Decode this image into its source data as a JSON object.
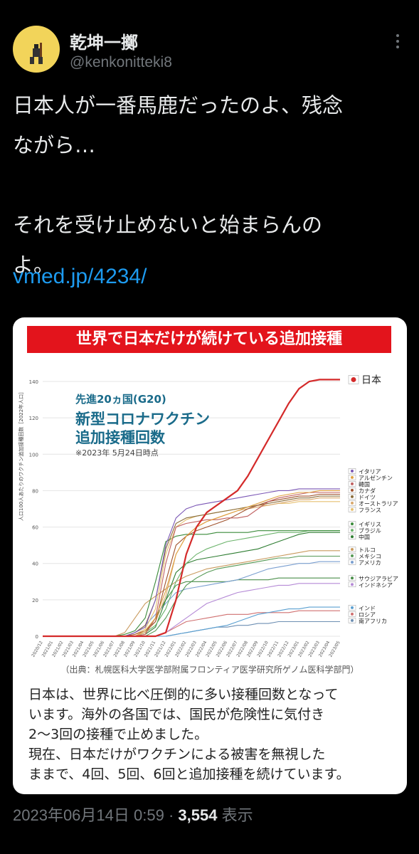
{
  "author": {
    "name": "乾坤一擲",
    "handle": "@kenkonitteki8"
  },
  "tweet": {
    "text": "日本人が一番馬鹿だったのよ、残念\nながら…\n\nそれを受け止めないと始まらんの\nよ。",
    "link": "vmed.jp/4234/"
  },
  "image": {
    "banner": "世界で日本だけが続けている追加接種",
    "chart_title_1": "先進20ヵ国(G20)",
    "chart_title_2": "新型コロナワクチン",
    "chart_title_3": "追加接種回数",
    "chart_date": "※2023年 5月24日時点",
    "ylabel": "人口100人あたりのワクチン追加接種回数［2022年人口］",
    "source": "（出典：札幌医科大学医学部附属フロンティア医学研究所ゲノム医科学部門）",
    "caption": "日本は、世界に比べ圧倒的に多い接種回数となって\nいます。海外の各国では、国民が危険性に気付き\n2〜3回の接種で止めました。\n現在、日本だけがワクチンによる被害を無視した\nままで、4回、5回、6回と追加接種を続けています。"
  },
  "chart_data": {
    "type": "line",
    "title": "新型コロナワクチン 追加接種回数",
    "ylim": [
      0,
      140
    ],
    "yticks": [
      0,
      20,
      40,
      60,
      80,
      100,
      120,
      140
    ],
    "x": [
      "2020/12",
      "2021/01",
      "2021/02",
      "2021/03",
      "2021/04",
      "2021/05",
      "2021/06",
      "2021/07",
      "2021/08",
      "2021/09",
      "2021/10",
      "2021/11",
      "2021/12",
      "2022/01",
      "2022/02",
      "2022/03",
      "2022/04",
      "2022/05",
      "2022/06",
      "2022/07",
      "2022/08",
      "2022/09",
      "2022/10",
      "2022/11",
      "2022/12",
      "2023/01",
      "2023/02",
      "2023/03",
      "2023/04",
      "2023/05"
    ],
    "series": [
      {
        "name": "日本",
        "color": "#d42a2a",
        "values": [
          0,
          0,
          0,
          0,
          0,
          0,
          0,
          0,
          0,
          0,
          0,
          0,
          2,
          20,
          45,
          60,
          68,
          72,
          76,
          80,
          88,
          98,
          108,
          118,
          128,
          136,
          140,
          141,
          141,
          141
        ]
      },
      {
        "name": "イタリア",
        "color": "#7b57b5",
        "values": [
          0,
          0,
          0,
          0,
          0,
          0,
          0,
          0,
          0,
          2,
          5,
          20,
          50,
          65,
          70,
          72,
          73,
          74,
          75,
          76,
          77,
          78,
          79,
          80,
          80,
          81,
          81,
          81,
          81,
          81
        ]
      },
      {
        "name": "アルゼンチン",
        "color": "#e0a040",
        "values": [
          0,
          0,
          0,
          0,
          0,
          0,
          0,
          0,
          0,
          0,
          3,
          10,
          25,
          45,
          55,
          60,
          63,
          65,
          67,
          69,
          71,
          73,
          75,
          77,
          78,
          79,
          79,
          80,
          80,
          80
        ]
      },
      {
        "name": "韓国",
        "color": "#c06060",
        "values": [
          0,
          0,
          0,
          0,
          0,
          0,
          0,
          0,
          0,
          0,
          1,
          10,
          40,
          60,
          62,
          63,
          64,
          64,
          65,
          65,
          66,
          70,
          74,
          76,
          77,
          78,
          79,
          79,
          79,
          79
        ]
      },
      {
        "name": "カナダ",
        "color": "#a0522d",
        "values": [
          0,
          0,
          0,
          0,
          0,
          0,
          0,
          0,
          0,
          1,
          3,
          8,
          30,
          50,
          55,
          58,
          60,
          62,
          64,
          67,
          70,
          72,
          74,
          75,
          76,
          77,
          77,
          78,
          78,
          78
        ]
      },
      {
        "name": "ドイツ",
        "color": "#8a6d3b",
        "values": [
          0,
          0,
          0,
          0,
          0,
          0,
          0,
          0,
          0,
          2,
          6,
          20,
          48,
          62,
          65,
          66,
          67,
          68,
          69,
          70,
          71,
          72,
          73,
          74,
          75,
          76,
          76,
          77,
          77,
          77
        ]
      },
      {
        "name": "オーストラリア",
        "color": "#d9a86c",
        "values": [
          0,
          0,
          0,
          0,
          0,
          0,
          0,
          0,
          0,
          0,
          2,
          8,
          22,
          45,
          55,
          60,
          63,
          65,
          67,
          69,
          70,
          71,
          72,
          73,
          74,
          75,
          75,
          76,
          76,
          76
        ]
      },
      {
        "name": "フランス",
        "color": "#e6c070",
        "values": [
          0,
          0,
          0,
          0,
          0,
          0,
          0,
          0,
          0,
          1,
          4,
          15,
          45,
          60,
          64,
          66,
          67,
          68,
          69,
          70,
          71,
          72,
          72,
          73,
          73,
          74,
          74,
          74,
          74,
          74
        ]
      },
      {
        "name": "イギリス",
        "color": "#3a8a3a",
        "values": [
          0,
          0,
          0,
          0,
          0,
          0,
          0,
          0,
          1,
          3,
          10,
          30,
          52,
          55,
          56,
          56,
          56,
          57,
          57,
          57,
          57,
          58,
          58,
          58,
          58,
          58,
          58,
          58,
          58,
          58
        ]
      },
      {
        "name": "ブラジル",
        "color": "#6bb36b",
        "values": [
          0,
          0,
          0,
          0,
          0,
          0,
          0,
          0,
          0,
          0,
          2,
          6,
          15,
          30,
          40,
          45,
          48,
          50,
          52,
          53,
          54,
          55,
          56,
          57,
          57,
          57,
          58,
          58,
          58,
          58
        ]
      },
      {
        "name": "中国",
        "color": "#2e7d32",
        "values": [
          0,
          0,
          0,
          0,
          0,
          0,
          0,
          0,
          0,
          0,
          1,
          5,
          20,
          35,
          40,
          42,
          43,
          44,
          45,
          46,
          47,
          48,
          50,
          52,
          54,
          56,
          57,
          57,
          57,
          57
        ]
      },
      {
        "name": "トルコ",
        "color": "#c99a5e",
        "values": [
          0,
          0,
          0,
          0,
          0,
          0,
          0,
          0,
          2,
          10,
          18,
          22,
          26,
          30,
          33,
          35,
          37,
          38,
          39,
          40,
          41,
          42,
          43,
          44,
          45,
          46,
          47,
          47,
          47,
          47
        ]
      },
      {
        "name": "メキシコ",
        "color": "#559955",
        "values": [
          0,
          0,
          0,
          0,
          0,
          0,
          0,
          0,
          0,
          0,
          0,
          3,
          10,
          20,
          28,
          32,
          35,
          37,
          38,
          39,
          40,
          41,
          42,
          43,
          43,
          44,
          44,
          44,
          44,
          44
        ]
      },
      {
        "name": "アメリカ",
        "color": "#7a9fd0",
        "values": [
          0,
          0,
          0,
          0,
          0,
          0,
          0,
          0,
          0,
          2,
          6,
          12,
          18,
          24,
          26,
          27,
          28,
          29,
          30,
          31,
          33,
          35,
          37,
          38,
          39,
          40,
          40,
          41,
          41,
          41
        ]
      },
      {
        "name": "サウジアラビア",
        "color": "#4a8f4a",
        "values": [
          0,
          0,
          0,
          0,
          0,
          0,
          0,
          0,
          0,
          0,
          2,
          10,
          20,
          28,
          30,
          30,
          30,
          30,
          30,
          31,
          31,
          31,
          31,
          32,
          32,
          32,
          32,
          32,
          32,
          32
        ]
      },
      {
        "name": "インドネシア",
        "color": "#b58ad6",
        "values": [
          0,
          0,
          0,
          0,
          0,
          0,
          0,
          0,
          0,
          0,
          0,
          0,
          2,
          6,
          10,
          14,
          18,
          20,
          22,
          24,
          25,
          26,
          27,
          28,
          28,
          29,
          29,
          29,
          29,
          29
        ]
      },
      {
        "name": "インド",
        "color": "#5a9fd0",
        "values": [
          0,
          0,
          0,
          0,
          0,
          0,
          0,
          0,
          0,
          0,
          0,
          0,
          0,
          1,
          2,
          3,
          4,
          5,
          6,
          8,
          10,
          12,
          13,
          14,
          15,
          15,
          16,
          16,
          16,
          16
        ]
      },
      {
        "name": "ロシア",
        "color": "#d07070",
        "values": [
          0,
          0,
          0,
          0,
          0,
          0,
          0,
          0,
          0,
          0,
          0,
          0,
          2,
          5,
          8,
          9,
          10,
          11,
          12,
          12,
          12,
          13,
          13,
          13,
          13,
          14,
          14,
          14,
          14,
          14
        ]
      },
      {
        "name": "南アフリカ",
        "color": "#6d8fb3",
        "values": [
          0,
          0,
          0,
          0,
          0,
          0,
          0,
          0,
          0,
          0,
          0,
          0,
          0,
          1,
          2,
          3,
          4,
          5,
          5,
          6,
          6,
          7,
          7,
          8,
          8,
          8,
          8,
          8,
          8,
          8
        ]
      }
    ],
    "legend_groups": [
      {
        "labels": [
          "日本"
        ]
      },
      {
        "labels": [
          "イタリア",
          "アルゼンチン",
          "韓国",
          "カナダ",
          "ドイツ",
          "オーストラリア",
          "フランス"
        ]
      },
      {
        "labels": [
          "イギリス",
          "ブラジル",
          "中国"
        ]
      },
      {
        "labels": [
          "トルコ",
          "メキシコ",
          "アメリカ"
        ]
      },
      {
        "labels": [
          "サウジアラビア",
          "インドネシア"
        ]
      },
      {
        "labels": [
          "インド",
          "ロシア",
          "南アフリカ"
        ]
      }
    ]
  },
  "meta": {
    "timestamp": "2023年06月14日 0:59",
    "separator": " · ",
    "views": "3,554",
    "views_label": " 表示"
  }
}
